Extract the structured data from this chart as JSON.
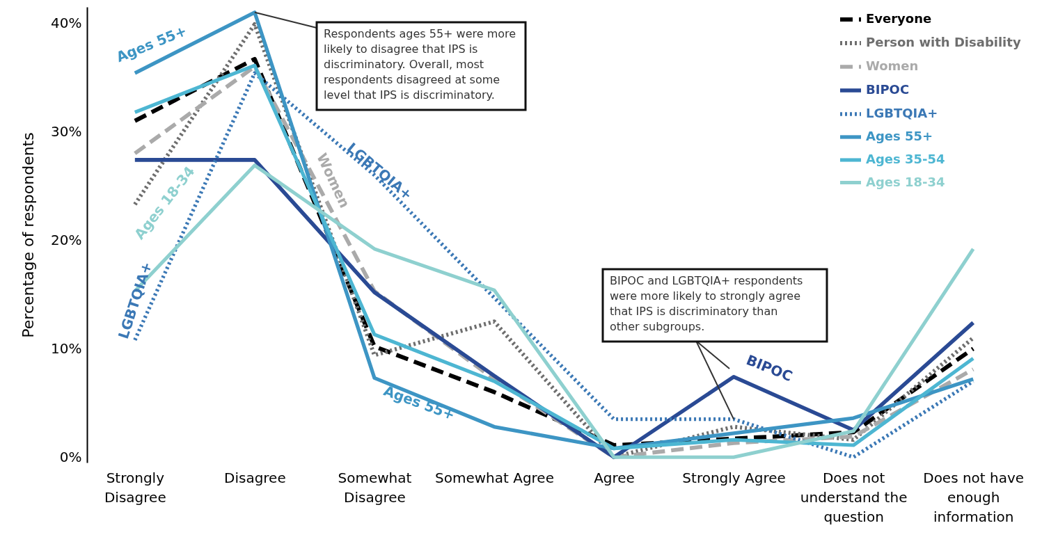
{
  "chart_data": {
    "type": "line",
    "ylabel": "Percentage of respondents",
    "categories": [
      "Strongly Disagree",
      "Disagree",
      "Somewhat Disagree",
      "Somewhat Agree",
      "Agree",
      "Strongly Agree",
      "Does not understand the question",
      "Does not have enough information"
    ],
    "series": [
      {
        "name": "Everyone",
        "color": "#000000",
        "line_style": "dashed",
        "values": [
          31,
          36.7,
          10.2,
          6,
          1.1,
          1.7,
          2.3,
          10
        ]
      },
      {
        "name": "Person with Disability",
        "color": "#6e6e6e",
        "line_style": "dotted",
        "values": [
          23.3,
          39.9,
          9.4,
          12.5,
          0,
          2.8,
          1.6,
          11
        ]
      },
      {
        "name": "Women",
        "color": "#aaaaaa",
        "line_style": "dashed",
        "values": [
          28,
          36,
          15.3,
          7.2,
          0,
          1.3,
          1.9,
          8.1
        ]
      },
      {
        "name": "BIPOC",
        "color": "#2a4a94",
        "line_style": "solid",
        "values": [
          27.4,
          27.4,
          15.2,
          7.5,
          0,
          7.4,
          2.5,
          12.4
        ]
      },
      {
        "name": "LGBTQIA+",
        "color": "#3b78b5",
        "line_style": "dotted",
        "values": [
          10.8,
          35.4,
          26,
          14.7,
          3.5,
          3.5,
          0,
          7
        ]
      },
      {
        "name": "Ages 55+",
        "color": "#3d95c4",
        "line_style": "solid",
        "values": [
          35.4,
          41,
          7.3,
          2.8,
          0.8,
          2.2,
          3.6,
          7.2
        ]
      },
      {
        "name": "Ages 35-54",
        "color": "#4db6d2",
        "line_style": "solid",
        "values": [
          31.8,
          36.1,
          11.3,
          7,
          0.8,
          1.6,
          1.1,
          9.1
        ]
      },
      {
        "name": "Ages 18-34",
        "color": "#8ed0cf",
        "line_style": "solid",
        "values": [
          15.3,
          26.9,
          19.2,
          15.4,
          0,
          0,
          2.4,
          19.2
        ]
      }
    ],
    "ylim": [
      -0.5,
      41.5
    ],
    "yticks": [
      {
        "value": 0,
        "label": "0%"
      },
      {
        "value": 10,
        "label": "10%"
      },
      {
        "value": 20,
        "label": "20%"
      },
      {
        "value": 30,
        "label": "30%"
      },
      {
        "value": 40,
        "label": "40%"
      }
    ],
    "grid": false,
    "legend": "top right",
    "annotations": [
      "Ages 55+",
      "Ages 18-34",
      "LGBTQIA+",
      "Women",
      "LGBTQIA+",
      "Ages 55+",
      "BIPOC",
      {
        "text": "Respondents ages 55+ were more likely to disagree that IPS is discriminatory. Overall, most respondents disagreed at some level that IPS is discriminatory.",
        "x": "Disagree",
        "y": 41
      },
      {
        "text": "BIPOC and LGBTQIA+ respondents were more likely to strongly agree that IPS is discriminatory than other subgroups.",
        "x": "Strongly Agree",
        "y": 3.5
      }
    ]
  }
}
